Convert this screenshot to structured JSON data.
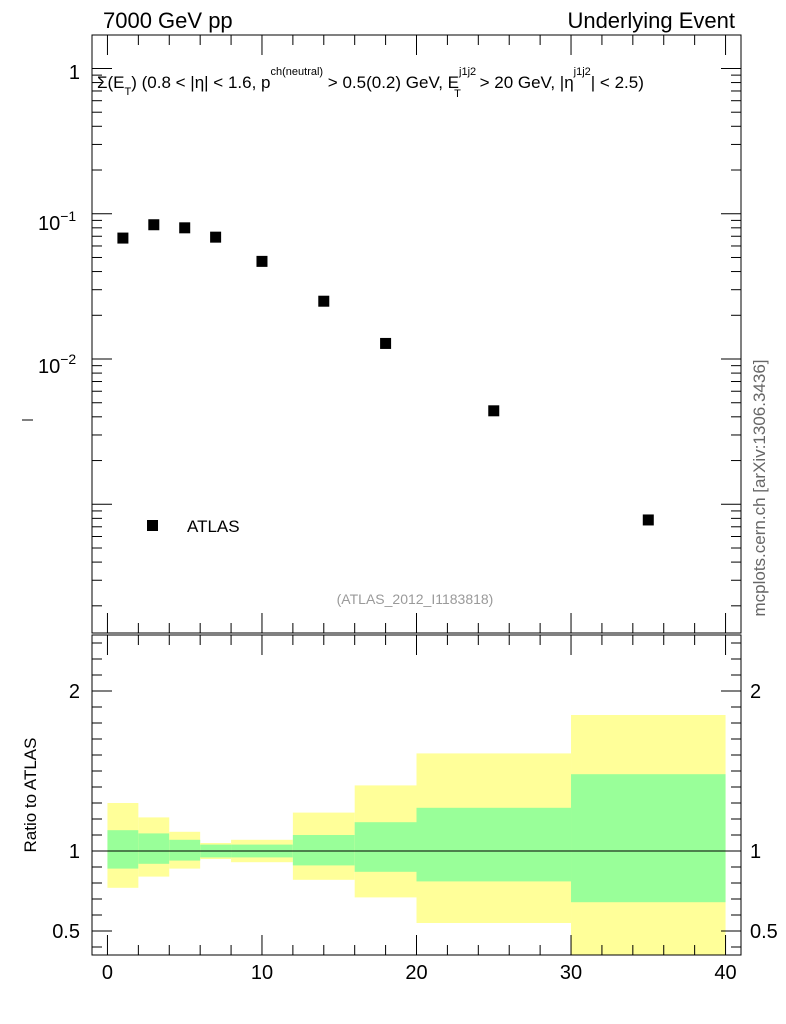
{
  "header": {
    "left": "7000 GeV pp",
    "right": "Underlying Event"
  },
  "side_label": "mcplots.cern.ch [arXiv:1306.3436]",
  "reference": "(ATLAS_2012_I1183818)",
  "legend": {
    "label": "ATLAS"
  },
  "ratio_ylabel": "Ratio to ATLAS",
  "observable": {
    "p1": "Σ(E",
    "s1": "T",
    "p2": ") (0.8 < |η| < 1.6, p",
    "s2": "ch(neutral)",
    "p3": " > 0.5(0.2) GeV, E",
    "s3a": "j1j2",
    "s3b": "T",
    "p4": " > 20 GeV, |η",
    "s4": "j1j2",
    "p5": "| < 2.5)"
  },
  "main_yticks": {
    "one": "1",
    "em1_base": "10",
    "em1_exp": "−1",
    "em2_base": "10",
    "em2_exp": "−2"
  },
  "colors": {
    "marker": "#000000",
    "band_inner": "#99ff99",
    "band_outer": "#ffff99",
    "ref_text": "#9a9a9a"
  },
  "chart_data": [
    {
      "type": "scatter",
      "yscale": "log",
      "xlim": [
        -1,
        41
      ],
      "ylim": [
        0.00013,
        1.7
      ],
      "series": [
        {
          "name": "ATLAS",
          "x": [
            1,
            3,
            5,
            7,
            10,
            14,
            18,
            25,
            35
          ],
          "y": [
            0.068,
            0.084,
            0.08,
            0.069,
            0.047,
            0.025,
            0.0128,
            0.0044,
            0.00078
          ]
        }
      ]
    },
    {
      "type": "area",
      "ylabel": "Ratio to ATLAS",
      "xlim": [
        -1,
        41
      ],
      "ylim": [
        0.35,
        2.35
      ],
      "xticks": [
        0,
        10,
        20,
        30,
        40
      ],
      "yticks": [
        0.5,
        1,
        2
      ],
      "bin_edges": [
        0,
        2,
        4,
        6,
        8,
        12,
        16,
        20,
        30,
        40
      ],
      "inner_band": {
        "low": [
          0.89,
          0.92,
          0.94,
          0.96,
          0.96,
          0.91,
          0.87,
          0.81,
          0.68
        ],
        "high": [
          1.13,
          1.11,
          1.07,
          1.04,
          1.04,
          1.1,
          1.18,
          1.27,
          1.48
        ]
      },
      "outer_band": {
        "low": [
          0.77,
          0.84,
          0.89,
          0.95,
          0.93,
          0.82,
          0.71,
          0.55,
          0.35
        ],
        "high": [
          1.3,
          1.21,
          1.12,
          1.05,
          1.07,
          1.24,
          1.41,
          1.61,
          1.85
        ]
      }
    }
  ]
}
